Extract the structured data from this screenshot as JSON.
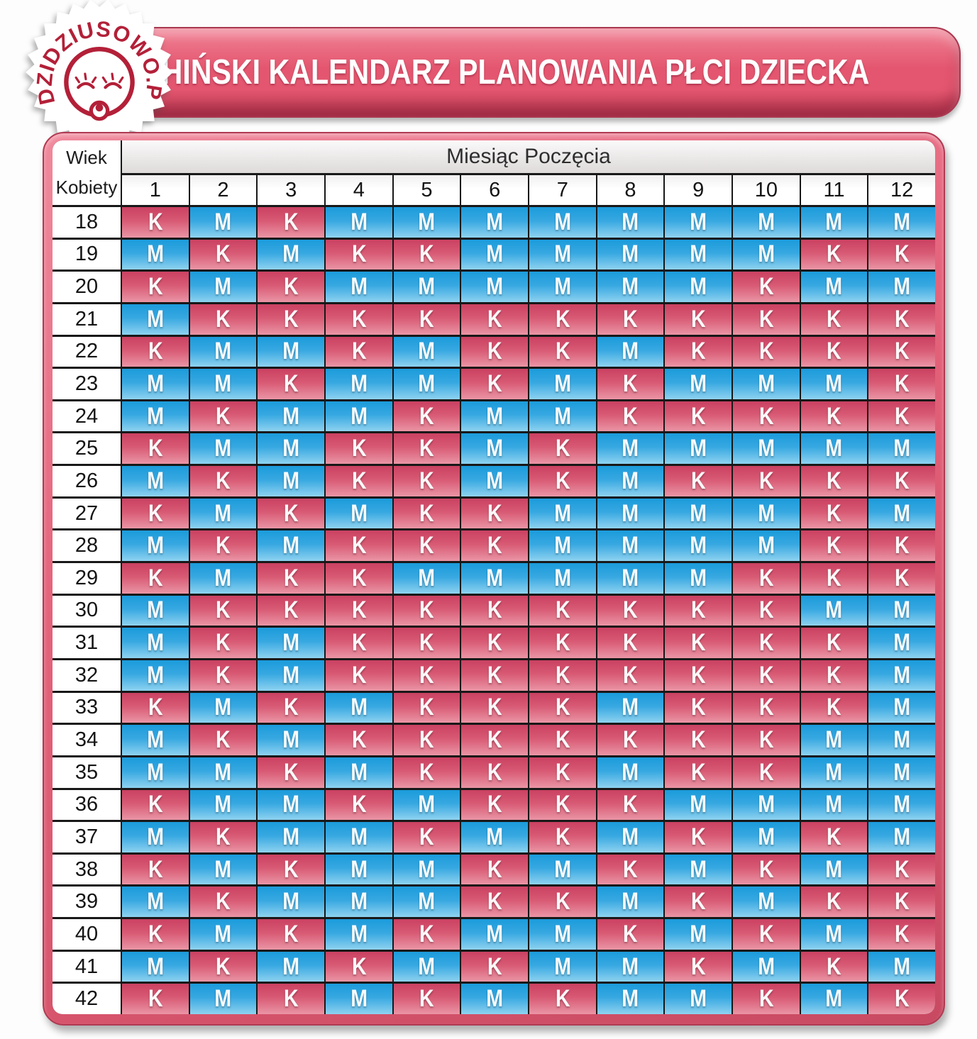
{
  "header": {
    "title": "CHIŃSKI KALENDARZ PLANOWANIA PŁCI DZIECKA",
    "logo_text": "DZIDZIUSOWO.PL"
  },
  "table": {
    "age_header_line1": "Wiek",
    "age_header_line2": "Kobiety",
    "months_header": "Miesiąc Poczęcia",
    "months": [
      "1",
      "2",
      "3",
      "4",
      "5",
      "6",
      "7",
      "8",
      "9",
      "10",
      "11",
      "12"
    ],
    "girl_letter": "K",
    "boy_letter": "M",
    "rows": [
      {
        "age": "18",
        "cells": [
          "K",
          "M",
          "K",
          "M",
          "M",
          "M",
          "M",
          "M",
          "M",
          "M",
          "M",
          "M"
        ]
      },
      {
        "age": "19",
        "cells": [
          "M",
          "K",
          "M",
          "K",
          "K",
          "M",
          "M",
          "M",
          "M",
          "M",
          "K",
          "K"
        ]
      },
      {
        "age": "20",
        "cells": [
          "K",
          "M",
          "K",
          "M",
          "M",
          "M",
          "M",
          "M",
          "M",
          "K",
          "M",
          "M"
        ]
      },
      {
        "age": "21",
        "cells": [
          "M",
          "K",
          "K",
          "K",
          "K",
          "K",
          "K",
          "K",
          "K",
          "K",
          "K",
          "K"
        ]
      },
      {
        "age": "22",
        "cells": [
          "K",
          "M",
          "M",
          "K",
          "M",
          "K",
          "K",
          "M",
          "K",
          "K",
          "K",
          "K"
        ]
      },
      {
        "age": "23",
        "cells": [
          "M",
          "M",
          "K",
          "M",
          "M",
          "K",
          "M",
          "K",
          "M",
          "M",
          "M",
          "K"
        ]
      },
      {
        "age": "24",
        "cells": [
          "M",
          "K",
          "M",
          "M",
          "K",
          "M",
          "M",
          "K",
          "K",
          "K",
          "K",
          "K"
        ]
      },
      {
        "age": "25",
        "cells": [
          "K",
          "M",
          "M",
          "K",
          "K",
          "M",
          "K",
          "M",
          "M",
          "M",
          "M",
          "M"
        ]
      },
      {
        "age": "26",
        "cells": [
          "M",
          "K",
          "M",
          "K",
          "K",
          "M",
          "K",
          "M",
          "K",
          "K",
          "K",
          "K"
        ]
      },
      {
        "age": "27",
        "cells": [
          "K",
          "M",
          "K",
          "M",
          "K",
          "K",
          "M",
          "M",
          "M",
          "M",
          "K",
          "M"
        ]
      },
      {
        "age": "28",
        "cells": [
          "M",
          "K",
          "M",
          "K",
          "K",
          "K",
          "M",
          "M",
          "M",
          "M",
          "K",
          "K"
        ]
      },
      {
        "age": "29",
        "cells": [
          "K",
          "M",
          "K",
          "K",
          "M",
          "M",
          "M",
          "M",
          "M",
          "K",
          "K",
          "K"
        ]
      },
      {
        "age": "30",
        "cells": [
          "M",
          "K",
          "K",
          "K",
          "K",
          "K",
          "K",
          "K",
          "K",
          "K",
          "M",
          "M"
        ]
      },
      {
        "age": "31",
        "cells": [
          "M",
          "K",
          "M",
          "K",
          "K",
          "K",
          "K",
          "K",
          "K",
          "K",
          "K",
          "M"
        ]
      },
      {
        "age": "32",
        "cells": [
          "M",
          "K",
          "M",
          "K",
          "K",
          "K",
          "K",
          "K",
          "K",
          "K",
          "K",
          "M"
        ]
      },
      {
        "age": "33",
        "cells": [
          "K",
          "M",
          "K",
          "M",
          "K",
          "K",
          "K",
          "M",
          "K",
          "K",
          "K",
          "M"
        ]
      },
      {
        "age": "34",
        "cells": [
          "M",
          "K",
          "M",
          "K",
          "K",
          "K",
          "K",
          "K",
          "K",
          "K",
          "M",
          "M"
        ]
      },
      {
        "age": "35",
        "cells": [
          "M",
          "M",
          "K",
          "M",
          "K",
          "K",
          "K",
          "M",
          "K",
          "K",
          "M",
          "M"
        ]
      },
      {
        "age": "36",
        "cells": [
          "K",
          "M",
          "M",
          "K",
          "M",
          "K",
          "K",
          "K",
          "M",
          "M",
          "M",
          "M"
        ]
      },
      {
        "age": "37",
        "cells": [
          "M",
          "K",
          "M",
          "M",
          "K",
          "M",
          "K",
          "M",
          "K",
          "M",
          "K",
          "M"
        ]
      },
      {
        "age": "38",
        "cells": [
          "K",
          "M",
          "K",
          "M",
          "M",
          "K",
          "M",
          "K",
          "M",
          "K",
          "M",
          "K"
        ]
      },
      {
        "age": "39",
        "cells": [
          "M",
          "K",
          "M",
          "M",
          "M",
          "K",
          "K",
          "M",
          "K",
          "M",
          "K",
          "K"
        ]
      },
      {
        "age": "40",
        "cells": [
          "K",
          "M",
          "K",
          "M",
          "K",
          "M",
          "M",
          "K",
          "M",
          "K",
          "M",
          "K"
        ]
      },
      {
        "age": "41",
        "cells": [
          "M",
          "K",
          "M",
          "K",
          "M",
          "K",
          "M",
          "M",
          "K",
          "M",
          "K",
          "M"
        ]
      },
      {
        "age": "42",
        "cells": [
          "K",
          "M",
          "K",
          "M",
          "K",
          "M",
          "K",
          "M",
          "M",
          "K",
          "M",
          "K"
        ]
      }
    ]
  },
  "colors": {
    "girl_top": "#ca4161",
    "girl_bottom": "#ea95a5",
    "boy_top": "#1b9bdb",
    "boy_bottom": "#8ed2f0",
    "frame_pink": "#e4647c",
    "banner_top": "#f08396",
    "banner_mid": "#e4566f",
    "banner_bottom": "#c03e55",
    "logo_red": "#b32038",
    "grid_line": "#181818"
  }
}
